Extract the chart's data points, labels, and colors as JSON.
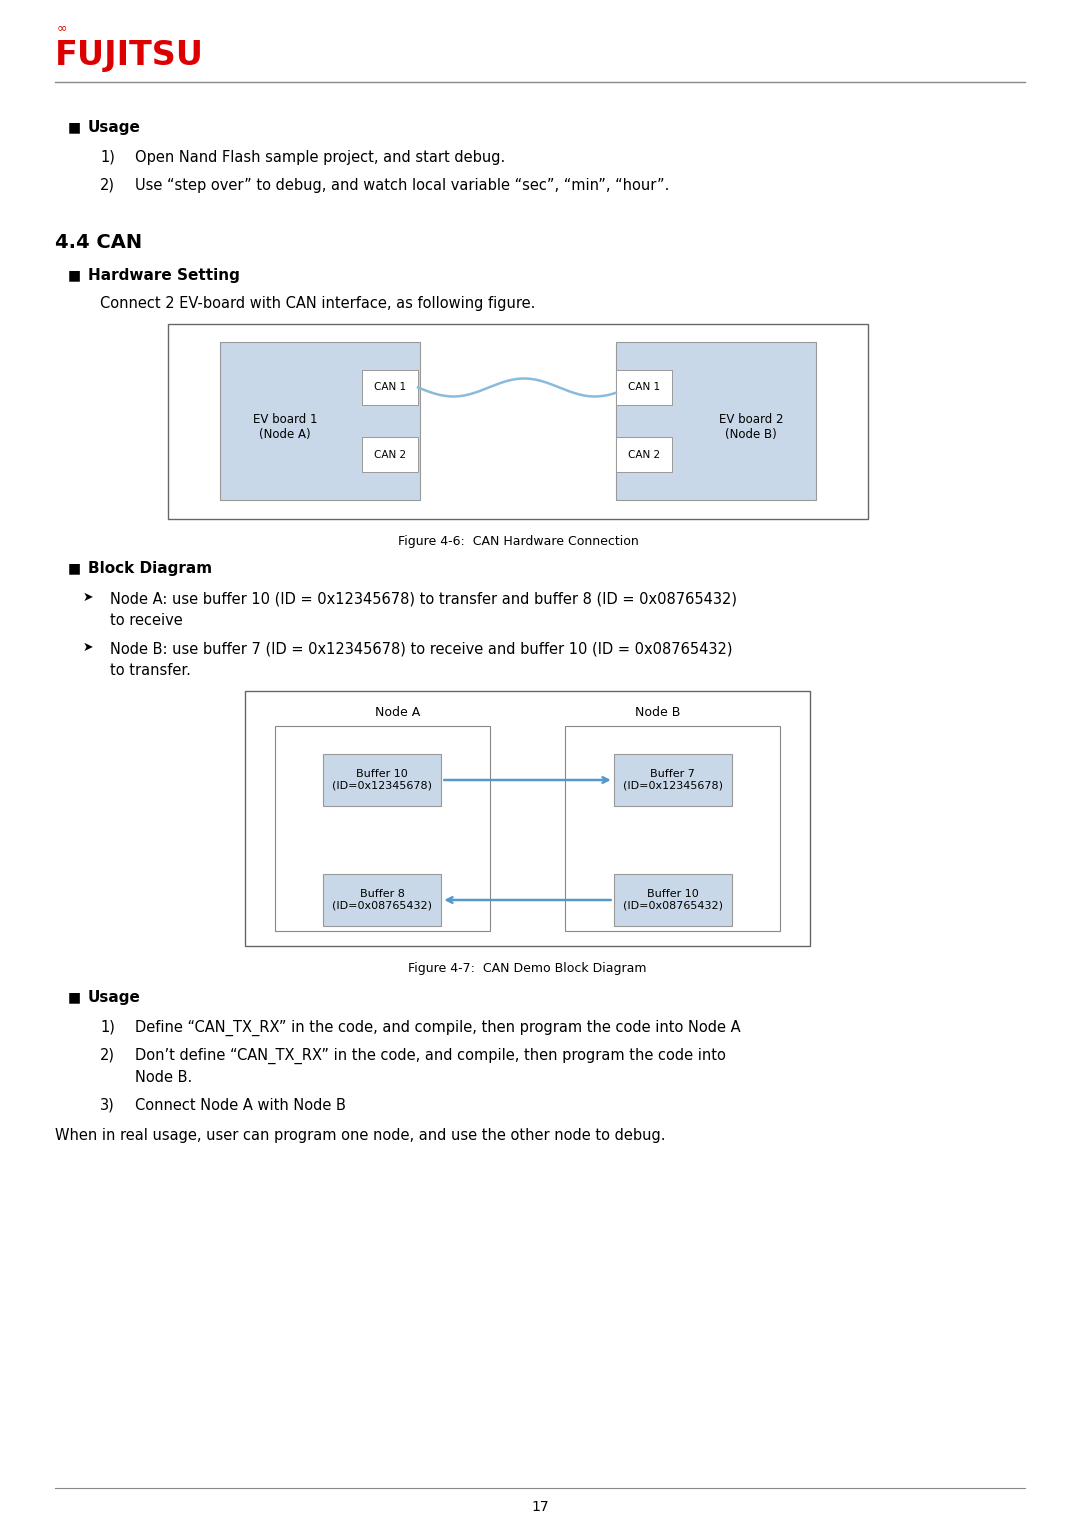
{
  "page_num": "17",
  "bg_color": "#ffffff",
  "line_color": "#888888",
  "fujitsu_color": "#dd0000",
  "usage1_title": "Usage",
  "usage1_items": [
    "Open Nand Flash sample project, and start debug.",
    "Use “step over” to debug, and watch local variable “sec”, “min”, “hour”."
  ],
  "section_44_title": "4.4 CAN",
  "section_hw_title": "Hardware Setting",
  "hw_desc": "Connect 2 EV-board with CAN interface, as following figure.",
  "fig46_caption": "Figure 4-6:  CAN Hardware Connection",
  "section_block_title": "Block Diagram",
  "block_item1_line1": "Node A: use buffer 10 (ID = 0x12345678) to transfer and buffer 8 (ID = 0x08765432)",
  "block_item1_line2": "to receive",
  "block_item2_line1": "Node B: use buffer 7 (ID = 0x12345678) to receive and buffer 10 (ID = 0x08765432)",
  "block_item2_line2": "to transfer.",
  "fig47_caption": "Figure 4-7:  CAN Demo Block Diagram",
  "usage2_title": "Usage",
  "usage2_item1": "Define “CAN_TX_RX” in the code, and compile, then program the code into Node A",
  "usage2_item2_line1": "Don’t define “CAN_TX_RX” in the code, and compile, then program the code into",
  "usage2_item2_line2": "Node B.",
  "usage2_item3": "Connect Node A with Node B",
  "usage2_final": "When in real usage, user can program one node, and use the other node to debug.",
  "light_blue": "#c8d8e8",
  "box_border": "#999999",
  "white": "#ffffff",
  "diagram_border": "#555555",
  "arrow_color": "#5599cc",
  "node_box_color": "#e8e8e8"
}
